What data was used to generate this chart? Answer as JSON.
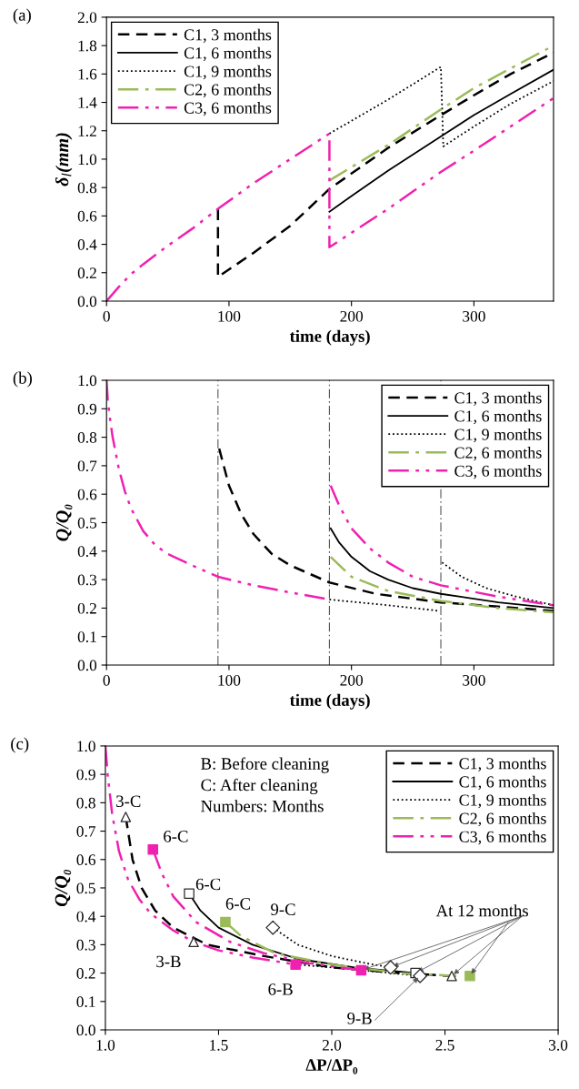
{
  "chart_data": [
    {
      "type": "line",
      "xlabel": "time (days)",
      "ylabel": "δ$_{l}$(mm)",
      "annotations": [
        "(a)"
      ],
      "legend": "top left",
      "grid": false,
      "xlim": [
        0,
        365
      ],
      "xticks": [
        0,
        100,
        200,
        300
      ],
      "ylim": [
        0,
        2
      ],
      "yticks": [
        {
          "value": 0,
          "label": "0.0"
        },
        {
          "value": 0.2,
          "label": "0.2"
        },
        {
          "value": 0.4,
          "label": "0.4"
        },
        {
          "value": 0.6,
          "label": "0.6"
        },
        {
          "value": 0.8,
          "label": "0.8"
        },
        {
          "value": 1.0,
          "label": "1.0"
        },
        {
          "value": 1.2,
          "label": "1.2"
        },
        {
          "value": 1.4,
          "label": "1.4"
        },
        {
          "value": 1.6,
          "label": "1.6"
        },
        {
          "value": 1.8,
          "label": "1.8"
        },
        {
          "value": 2.0,
          "label": "2.0"
        }
      ],
      "series": [
        {
          "name": "C1, 3 months",
          "color": "#000000",
          "line_style": "dashed",
          "x": [
            91,
            91,
            120,
            150,
            182,
            230,
            273,
            300,
            330,
            365
          ],
          "values": [
            0.65,
            0.17,
            0.34,
            0.53,
            0.79,
            1.08,
            1.31,
            1.45,
            1.6,
            1.75
          ]
        },
        {
          "name": "C1, 6 months",
          "color": "#000000",
          "line_style": "solid",
          "x": [
            182,
            200,
            230,
            273,
            300,
            330,
            365
          ],
          "values": [
            0.63,
            0.74,
            0.92,
            1.16,
            1.31,
            1.46,
            1.63
          ]
        },
        {
          "name": "C1, 9 months",
          "color": "#000000",
          "line_style": "dotted",
          "x": [
            182,
            230,
            273,
            275,
            300,
            330,
            365
          ],
          "values": [
            1.18,
            1.42,
            1.65,
            1.09,
            1.23,
            1.39,
            1.55
          ]
        },
        {
          "name": "C2, 6 months",
          "color": "#9bbb59",
          "line_style": "dashdot",
          "x": [
            182,
            230,
            273,
            300,
            330,
            365
          ],
          "values": [
            0.85,
            1.1,
            1.35,
            1.5,
            1.64,
            1.8
          ]
        },
        {
          "name": "C3, 6 months",
          "color": "#f020b0",
          "line_style": "dashdotdot",
          "x": [
            0,
            10,
            20,
            30,
            50,
            70,
            91,
            120,
            150,
            182,
            182,
            230,
            273,
            300,
            330,
            365
          ],
          "values": [
            0,
            0.1,
            0.19,
            0.26,
            0.39,
            0.51,
            0.65,
            0.83,
            1.0,
            1.18,
            0.38,
            0.65,
            0.91,
            1.06,
            1.23,
            1.43
          ]
        }
      ]
    },
    {
      "type": "line",
      "xlabel": "time (days)",
      "ylabel": "Q/Q₀",
      "annotations": [
        "(b)"
      ],
      "legend": "top right",
      "grid": false,
      "xlim": [
        0,
        365
      ],
      "xticks": [
        0,
        100,
        200,
        300
      ],
      "ylim": [
        0,
        1
      ],
      "yticks": [
        {
          "value": 0,
          "label": "0.0"
        },
        {
          "value": 0.1,
          "label": "0.1"
        },
        {
          "value": 0.2,
          "label": "0.2"
        },
        {
          "value": 0.3,
          "label": "0.3"
        },
        {
          "value": 0.4,
          "label": "0.4"
        },
        {
          "value": 0.5,
          "label": "0.5"
        },
        {
          "value": 0.6,
          "label": "0.6"
        },
        {
          "value": 0.7,
          "label": "0.7"
        },
        {
          "value": 0.8,
          "label": "0.8"
        },
        {
          "value": 0.9,
          "label": "0.9"
        },
        {
          "value": 1.0,
          "label": "1.0"
        }
      ],
      "ref_lines": [
        {
          "axis": "x",
          "value": 91,
          "color": "#555555",
          "line_style": "dashdot"
        },
        {
          "axis": "x",
          "value": 182,
          "color": "#555555",
          "line_style": "dashdot"
        },
        {
          "axis": "x",
          "value": 273,
          "color": "#555555",
          "line_style": "dashdot"
        }
      ],
      "series": [
        {
          "name": "C1, 3 months",
          "color": "#000000",
          "line_style": "dashed",
          "x": [
            92,
            100,
            110,
            120,
            135,
            150,
            182,
            220,
            273,
            320,
            365
          ],
          "values": [
            0.76,
            0.63,
            0.53,
            0.46,
            0.39,
            0.35,
            0.29,
            0.25,
            0.22,
            0.205,
            0.19
          ]
        },
        {
          "name": "C1, 6 months",
          "color": "#000000",
          "line_style": "solid",
          "x": [
            183,
            190,
            200,
            215,
            230,
            250,
            273,
            320,
            365
          ],
          "values": [
            0.48,
            0.43,
            0.38,
            0.33,
            0.3,
            0.27,
            0.25,
            0.22,
            0.2
          ]
        },
        {
          "name": "C1, 9 months",
          "color": "#000000",
          "line_style": "dotted",
          "x": [
            182,
            230,
            272,
            273,
            274,
            290,
            310,
            335,
            365
          ],
          "values": [
            0.23,
            0.21,
            0.19,
            null,
            0.36,
            0.31,
            0.27,
            0.24,
            0.21
          ]
        },
        {
          "name": "C2, 6 months",
          "color": "#9bbb59",
          "line_style": "dashdot",
          "x": [
            183,
            200,
            230,
            273,
            320,
            365
          ],
          "values": [
            0.38,
            0.31,
            0.26,
            0.225,
            0.2,
            0.185
          ]
        },
        {
          "name": "C3, 6 months",
          "color": "#f020b0",
          "line_style": "dashdotdot",
          "x": [
            0,
            1,
            3,
            5,
            10,
            15,
            20,
            30,
            40,
            50,
            70,
            91,
            120,
            150,
            182,
            182.5,
            183,
            190,
            200,
            215,
            230,
            250,
            273,
            320,
            365
          ],
          "values": [
            1.0,
            0.93,
            0.86,
            0.8,
            0.69,
            0.61,
            0.55,
            0.47,
            0.42,
            0.39,
            0.35,
            0.31,
            0.28,
            0.255,
            0.23,
            null,
            0.63,
            0.56,
            0.48,
            0.41,
            0.36,
            0.31,
            0.28,
            0.24,
            0.21
          ]
        }
      ]
    },
    {
      "type": "line",
      "xlabel": "ΔP/ΔP₀",
      "ylabel": "Q/Q₀",
      "legend": "top right",
      "grid": false,
      "annotations": [
        "(c)",
        "B: Before cleaning",
        "C: After cleaning",
        "Numbers: Months",
        {
          "text": "At 12 months",
          "x": 2.61,
          "y": 0.19
        },
        {
          "text": "3-C",
          "x": 1.09,
          "y": 0.75
        },
        {
          "text": "6-C",
          "x": 1.21,
          "y": 0.635
        },
        {
          "text": "6-C",
          "x": 1.37,
          "y": 0.48
        },
        {
          "text": "6-C",
          "x": 1.53,
          "y": 0.38
        },
        {
          "text": "9-C",
          "x": 1.74,
          "y": 0.36
        },
        {
          "text": "3-B",
          "x": 1.39,
          "y": 0.31
        },
        {
          "text": "6-B",
          "x": 1.84,
          "y": 0.23
        },
        {
          "text": "9-B",
          "x": 2.39,
          "y": 0.19
        }
      ],
      "xlim": [
        1,
        3
      ],
      "xticks": [
        {
          "value": 1,
          "label": "1.0"
        },
        {
          "value": 1.5,
          "label": "1.5"
        },
        {
          "value": 2,
          "label": "2.0"
        },
        {
          "value": 2.5,
          "label": "2.5"
        },
        {
          "value": 3,
          "label": "3.0"
        }
      ],
      "ylim": [
        0,
        1
      ],
      "yticks": [
        {
          "value": 0,
          "label": "0.0"
        },
        {
          "value": 0.1,
          "label": "0.1"
        },
        {
          "value": 0.2,
          "label": "0.2"
        },
        {
          "value": 0.3,
          "label": "0.3"
        },
        {
          "value": 0.4,
          "label": "0.4"
        },
        {
          "value": 0.5,
          "label": "0.5"
        },
        {
          "value": 0.6,
          "label": "0.6"
        },
        {
          "value": 0.7,
          "label": "0.7"
        },
        {
          "value": 0.8,
          "label": "0.8"
        },
        {
          "value": 0.9,
          "label": "0.9"
        },
        {
          "value": 1.0,
          "label": "1.0"
        }
      ],
      "series": [
        {
          "name": "C1, 3 months",
          "color": "#000000",
          "line_style": "dashed",
          "x": [
            1.09,
            1.12,
            1.16,
            1.22,
            1.3,
            1.45,
            1.7,
            2.0,
            2.3,
            2.53
          ],
          "values": [
            0.75,
            0.6,
            0.5,
            0.42,
            0.36,
            0.3,
            0.26,
            0.22,
            0.2,
            0.19
          ]
        },
        {
          "name": "C1, 6 months",
          "color": "#000000",
          "line_style": "solid",
          "x": [
            1.37,
            1.42,
            1.5,
            1.65,
            1.85,
            2.1,
            2.37
          ],
          "values": [
            0.48,
            0.42,
            0.36,
            0.3,
            0.25,
            0.22,
            0.2
          ]
        },
        {
          "name": "C1, 9 months",
          "color": "#000000",
          "line_style": "dotted",
          "x": [
            1.84,
            2.0,
            2.2,
            2.39,
            2.0,
            1.74,
            1.85,
            2.0,
            2.15,
            2.26
          ],
          "values": [
            0.23,
            0.22,
            0.205,
            0.19,
            null,
            0.36,
            0.3,
            0.26,
            0.235,
            0.22
          ]
        },
        {
          "name": "C2, 6 months",
          "color": "#9bbb59",
          "line_style": "dashdot",
          "x": [
            1.53,
            1.6,
            1.75,
            2.0,
            2.3,
            2.55
          ],
          "values": [
            0.38,
            0.33,
            0.27,
            0.23,
            0.2,
            0.19
          ]
        },
        {
          "name": "C3, 6 months",
          "color": "#f020b0",
          "line_style": "dashdotdot",
          "x": [
            1.0,
            1.01,
            1.03,
            1.06,
            1.1,
            1.15,
            1.2,
            1.3,
            1.39,
            1.5,
            1.65,
            1.84,
            1.5,
            1.21,
            1.25,
            1.3,
            1.4,
            1.55,
            1.7,
            1.9,
            2.13
          ],
          "values": [
            1.0,
            0.9,
            0.76,
            0.63,
            0.53,
            0.46,
            0.41,
            0.35,
            0.31,
            0.28,
            0.255,
            0.23,
            null,
            0.635,
            0.55,
            0.47,
            0.38,
            0.31,
            0.27,
            0.235,
            0.21
          ]
        },
        {
          "type": "scatter",
          "marker": "triangle",
          "color": "#ffffff",
          "x": [
            1.09,
            1.39,
            2.53
          ],
          "values": [
            0.75,
            0.31,
            0.19
          ]
        },
        {
          "type": "scatter",
          "marker": "square",
          "color": "#ffffff",
          "x": [
            1.37,
            2.37
          ],
          "values": [
            0.48,
            0.2
          ]
        },
        {
          "type": "scatter",
          "marker": "diamond",
          "color": "#ffffff",
          "x": [
            1.74,
            2.39,
            2.26
          ],
          "values": [
            0.36,
            0.19,
            0.22
          ]
        },
        {
          "type": "scatter",
          "marker": "square",
          "color": "#f020b0",
          "x": [
            1.21,
            1.84,
            2.13
          ],
          "values": [
            0.635,
            0.23,
            0.21
          ]
        },
        {
          "type": "scatter",
          "marker": "square",
          "color": "#9bbb59",
          "x": [
            1.53,
            2.61
          ],
          "values": [
            0.38,
            0.19
          ]
        }
      ]
    }
  ]
}
